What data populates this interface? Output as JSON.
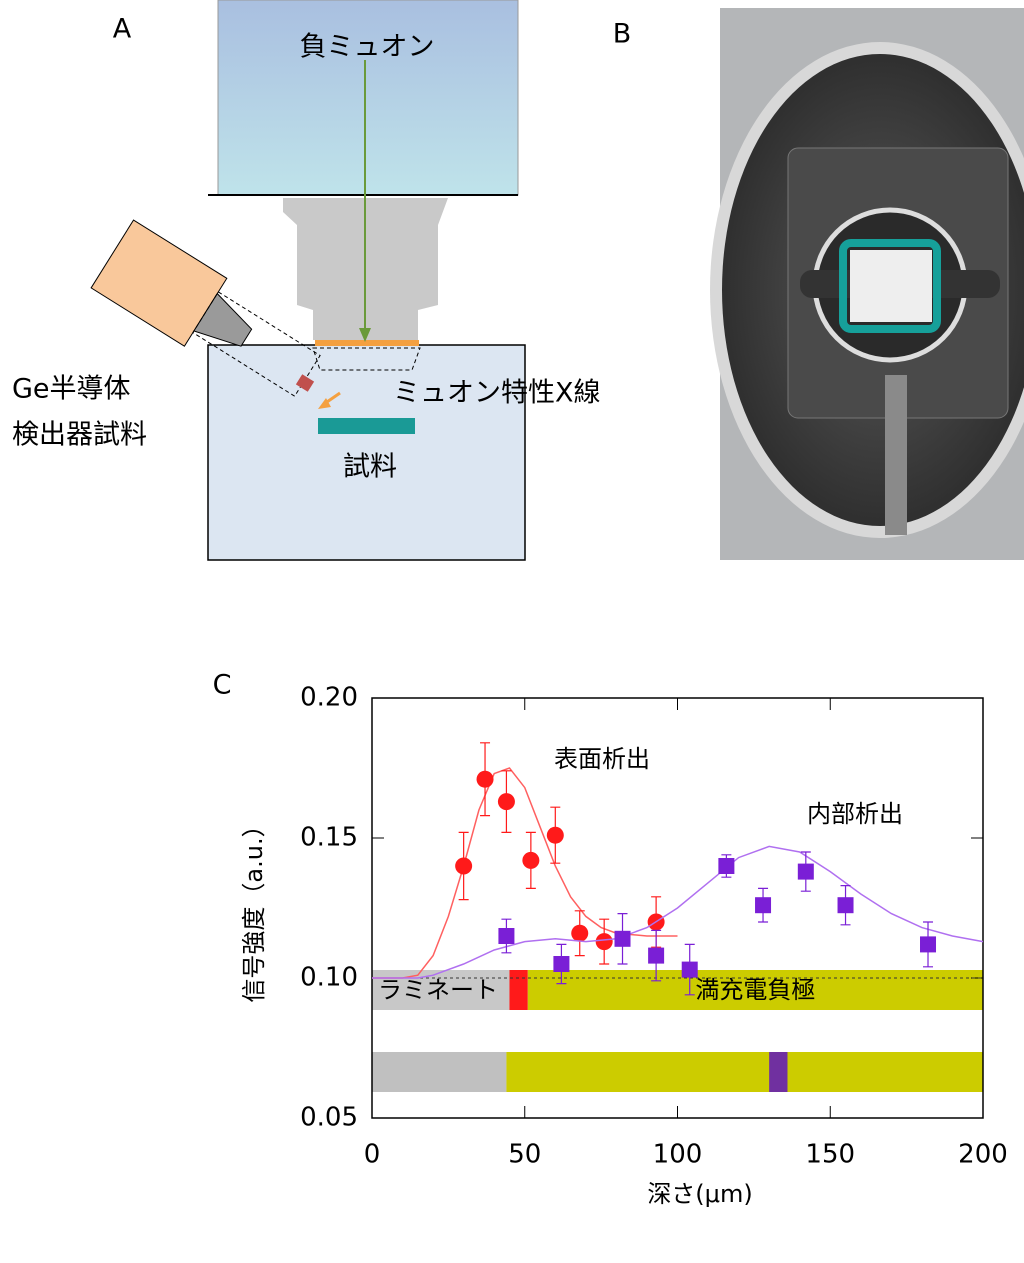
{
  "panel_a": {
    "label": "A",
    "beam": "負ミュオン",
    "detector_line1": "Ge半導体",
    "detector_line2": "検出器試料",
    "xray": "ミュオン特性X線",
    "sample": "試料"
  },
  "panel_b": {
    "label": "B"
  },
  "chart_data": {
    "type": "scatter",
    "panel_label": "C",
    "x_label": "深さ(μm)",
    "y_label": "信号強度（a.u.）",
    "xlim": [
      0,
      200
    ],
    "xticks": [
      0,
      50,
      100,
      150,
      200
    ],
    "ylim": [
      0.05,
      0.2
    ],
    "yticks": [
      0.05,
      {
        "value": 0.1,
        "label": "0.10"
      },
      0.15,
      {
        "value": 0.2,
        "label": "0.20"
      }
    ],
    "reference_y": 0.1,
    "series": [
      {
        "name": "表面析出",
        "color": "#ff1a1a",
        "marker": "circle",
        "x": [
          30,
          37,
          44,
          52,
          60,
          68,
          76,
          93
        ],
        "values": [
          0.14,
          0.171,
          0.163,
          0.142,
          0.151,
          0.116,
          0.113,
          0.12
        ],
        "errors": [
          0.012,
          0.013,
          0.011,
          0.01,
          0.01,
          0.008,
          0.008,
          0.009
        ],
        "fit": {
          "color": "#ff6060",
          "x": [
            0,
            10,
            15,
            20,
            25,
            30,
            35,
            40,
            45,
            50,
            55,
            60,
            65,
            70,
            75,
            80,
            90,
            100
          ],
          "values": [
            0.1,
            0.1,
            0.101,
            0.108,
            0.122,
            0.14,
            0.16,
            0.173,
            0.175,
            0.168,
            0.154,
            0.14,
            0.129,
            0.122,
            0.118,
            0.116,
            0.115,
            0.115
          ]
        }
      },
      {
        "name": "内部析出",
        "color": "#7a1fd6",
        "marker": "square",
        "x": [
          44,
          62,
          82,
          93,
          104,
          116,
          128,
          142,
          155,
          182
        ],
        "values": [
          0.115,
          0.105,
          0.114,
          0.108,
          0.103,
          0.14,
          0.126,
          0.138,
          0.126,
          0.112
        ],
        "errors": [
          0.006,
          0.007,
          0.009,
          0.009,
          0.009,
          0.004,
          0.006,
          0.007,
          0.007,
          0.008
        ],
        "fit": {
          "color": "#b070f0",
          "x": [
            0,
            15,
            20,
            30,
            40,
            50,
            60,
            70,
            80,
            90,
            100,
            110,
            120,
            130,
            140,
            150,
            160,
            170,
            180,
            190,
            200
          ],
          "values": [
            0.1,
            0.1,
            0.101,
            0.105,
            0.11,
            0.113,
            0.114,
            0.113,
            0.114,
            0.118,
            0.125,
            0.134,
            0.143,
            0.147,
            0.145,
            0.138,
            0.13,
            0.123,
            0.118,
            0.115,
            0.113
          ]
        }
      }
    ],
    "bands": [
      {
        "segments": [
          {
            "label": "ラミネート",
            "start": 0,
            "end": 45,
            "color": "#c8c8c8"
          },
          {
            "start": 45,
            "end": 51,
            "color": "#ff1a1a"
          },
          {
            "label": "満充電負極",
            "start": 51,
            "end": 200,
            "color": "#cccc00"
          }
        ]
      },
      {
        "segments": [
          {
            "start": 0,
            "end": 44,
            "color": "#c0c0c0"
          },
          {
            "start": 44,
            "end": 200,
            "color": "#cccc00"
          },
          {
            "start": 130,
            "end": 136,
            "color": "#7030a0"
          }
        ]
      }
    ]
  }
}
